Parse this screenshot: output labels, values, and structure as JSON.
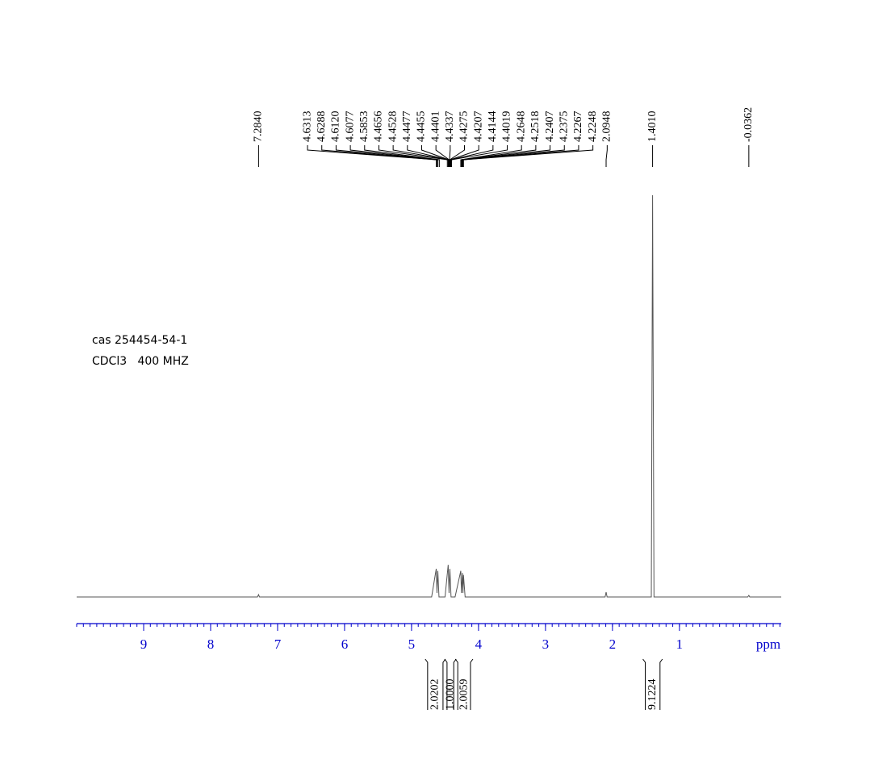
{
  "chart_data": {
    "type": "nmr",
    "annotations": [
      "cas 254454-54-1",
      "CDCl3   400 MHZ"
    ],
    "x_label": "ppm",
    "xlim": [
      10,
      -0.52
    ],
    "ylim": [
      0,
      100
    ],
    "xticks": [
      9,
      8,
      7,
      6,
      5,
      4,
      3,
      2,
      1
    ],
    "minor_tick_interval": 0.1,
    "axis_color": "#0000cc",
    "color": "#555555",
    "x": [
      10,
      7.3,
      7.284,
      7.27,
      4.7,
      4.6313,
      4.62,
      4.6077,
      4.59,
      4.5,
      4.4528,
      4.44,
      4.4275,
      4.41,
      4.35,
      4.2648,
      4.255,
      4.2407,
      4.232,
      4.2248,
      4.2,
      2.11,
      2.0948,
      2.08,
      1.42,
      1.401,
      1.38,
      -0.02,
      -0.0362,
      -0.05,
      -0.52
    ],
    "values": [
      0,
      0,
      0.6,
      0,
      0,
      7,
      1,
      6.5,
      0,
      0,
      8,
      1,
      7,
      0,
      0,
      6.5,
      1,
      6,
      1,
      5.5,
      0,
      0,
      1.2,
      0,
      0,
      100,
      0,
      0,
      0.4,
      0,
      0
    ],
    "peaks": [
      {
        "value": 7.284,
        "label": "7.2840"
      },
      4.6313,
      4.6288,
      {
        "value": 4.612,
        "label": "4.6120"
      },
      4.6077,
      4.5853,
      4.4656,
      4.4528,
      4.4477,
      4.4455,
      4.4401,
      4.4337,
      4.4275,
      4.4207,
      4.4144,
      4.4019,
      4.2648,
      4.2518,
      4.2407,
      4.2375,
      4.2267,
      4.2248,
      2.0948,
      {
        "value": 1.401,
        "label": "1.4010"
      },
      -0.0362
    ],
    "integrals": [
      {
        "from": 4.76,
        "to": 4.53,
        "value": 2.0202
      },
      {
        "from": 4.47,
        "to": 4.37,
        "value": 1,
        "label": "1.0000"
      },
      {
        "from": 4.31,
        "to": 4.12,
        "value": 2.0059
      },
      {
        "from": 1.51,
        "to": 1.29,
        "value": 9.1224
      }
    ]
  }
}
